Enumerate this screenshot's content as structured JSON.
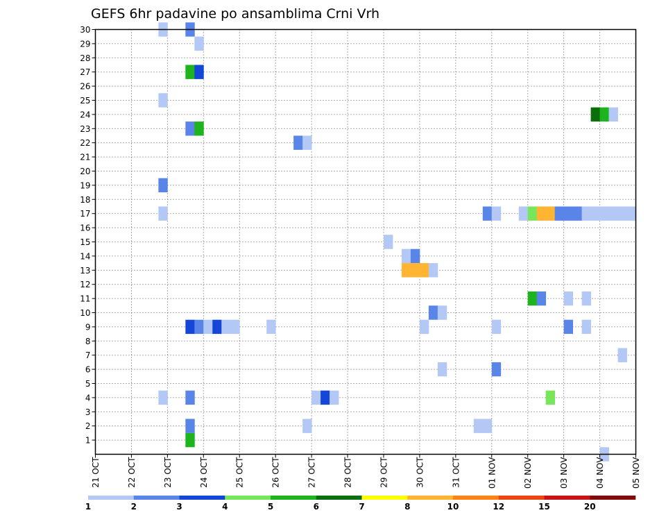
{
  "chart_data": {
    "type": "heatmap",
    "title": "GEFS 6hr padavine po ansamblima Crni Vrh",
    "xlabel": "",
    "ylabel": "",
    "x_ticks": [
      "21 OCT",
      "22 OCT",
      "23 OCT",
      "24 OCT",
      "25 OCT",
      "26 OCT",
      "27 OCT",
      "28 OCT",
      "29 OCT",
      "30 OCT",
      "31 OCT",
      "01 NOV",
      "02 NOV",
      "03 NOV",
      "04 NOV",
      "05 NOV"
    ],
    "y_ticks": [
      "1",
      "2",
      "3",
      "4",
      "5",
      "6",
      "7",
      "8",
      "9",
      "10",
      "11",
      "12",
      "13",
      "14",
      "15",
      "16",
      "17",
      "18",
      "19",
      "20",
      "21",
      "22",
      "23",
      "24",
      "25",
      "26",
      "27",
      "28",
      "29",
      "30"
    ],
    "ylim": [
      0,
      30
    ],
    "grid": true,
    "time_step_hours": 6,
    "legend": {
      "placement": "bottom",
      "labels": [
        "1",
        "2",
        "3",
        "4",
        "5",
        "6",
        "7",
        "8",
        "10",
        "12",
        "15",
        "20"
      ],
      "colors": [
        "#b4c8f6",
        "#5a85e8",
        "#1446d8",
        "#78e65a",
        "#1eb41e",
        "#0a6e0a",
        "#ffff00",
        "#ffb432",
        "#ff8214",
        "#ea4614",
        "#c81414",
        "#820a0a"
      ]
    },
    "cells": [
      {
        "member": 30,
        "day": "22 OCT",
        "slots": [
          [
            3,
            0
          ]
        ]
      },
      {
        "member": 30,
        "day": "23 OCT",
        "slots": [
          [
            2,
            1
          ]
        ]
      },
      {
        "member": 29,
        "day": "23 OCT",
        "slots": [
          [
            3,
            0
          ]
        ]
      },
      {
        "member": 27,
        "day": "23 OCT",
        "slots": [
          [
            2,
            4
          ],
          [
            3,
            2
          ]
        ]
      },
      {
        "member": 25,
        "day": "22 OCT",
        "slots": [
          [
            3,
            0
          ]
        ]
      },
      {
        "member": 24,
        "day": "03 NOV",
        "slots": [
          [
            3,
            5
          ]
        ]
      },
      {
        "member": 24,
        "day": "04 NOV",
        "slots": [
          [
            0,
            4
          ],
          [
            1,
            0
          ]
        ]
      },
      {
        "member": 23,
        "day": "23 OCT",
        "slots": [
          [
            2,
            1
          ],
          [
            3,
            4
          ]
        ]
      },
      {
        "member": 22,
        "day": "26 OCT",
        "slots": [
          [
            2,
            1
          ],
          [
            3,
            0
          ]
        ]
      },
      {
        "member": 19,
        "day": "22 OCT",
        "slots": [
          [
            3,
            1
          ]
        ]
      },
      {
        "member": 17,
        "day": "22 OCT",
        "slots": [
          [
            3,
            0
          ]
        ]
      },
      {
        "member": 17,
        "day": "31 OCT",
        "slots": [
          [
            3,
            1
          ]
        ]
      },
      {
        "member": 17,
        "day": "01 NOV",
        "slots": [
          [
            0,
            0
          ],
          [
            3,
            0
          ]
        ]
      },
      {
        "member": 17,
        "day": "02 NOV",
        "slots": [
          [
            0,
            3
          ],
          [
            1,
            7
          ],
          [
            2,
            7
          ],
          [
            3,
            1
          ]
        ]
      },
      {
        "member": 17,
        "day": "03 NOV",
        "slots": [
          [
            0,
            1
          ],
          [
            1,
            1
          ],
          [
            2,
            0
          ],
          [
            3,
            0
          ]
        ]
      },
      {
        "member": 17,
        "day": "04 NOV",
        "slots": [
          [
            0,
            0
          ],
          [
            1,
            0
          ],
          [
            2,
            0
          ],
          [
            3,
            0
          ]
        ]
      },
      {
        "member": 15,
        "day": "29 OCT",
        "slots": [
          [
            0,
            0
          ]
        ]
      },
      {
        "member": 14,
        "day": "29 OCT",
        "slots": [
          [
            2,
            0
          ],
          [
            3,
            1
          ]
        ]
      },
      {
        "member": 13,
        "day": "29 OCT",
        "slots": [
          [
            2,
            7
          ],
          [
            3,
            7
          ]
        ]
      },
      {
        "member": 13,
        "day": "30 OCT",
        "slots": [
          [
            0,
            7
          ],
          [
            1,
            0
          ]
        ]
      },
      {
        "member": 11,
        "day": "02 NOV",
        "slots": [
          [
            0,
            4
          ],
          [
            1,
            1
          ]
        ]
      },
      {
        "member": 11,
        "day": "03 NOV",
        "slots": [
          [
            0,
            0
          ],
          [
            2,
            0
          ]
        ]
      },
      {
        "member": 10,
        "day": "30 OCT",
        "slots": [
          [
            1,
            1
          ],
          [
            2,
            0
          ]
        ]
      },
      {
        "member": 9,
        "day": "23 OCT",
        "slots": [
          [
            2,
            2
          ],
          [
            3,
            1
          ]
        ]
      },
      {
        "member": 9,
        "day": "24 OCT",
        "slots": [
          [
            0,
            0
          ],
          [
            1,
            2
          ],
          [
            2,
            0
          ],
          [
            3,
            0
          ]
        ]
      },
      {
        "member": 9,
        "day": "25 OCT",
        "slots": [
          [
            3,
            0
          ]
        ]
      },
      {
        "member": 9,
        "day": "30 OCT",
        "slots": [
          [
            0,
            0
          ]
        ]
      },
      {
        "member": 9,
        "day": "01 NOV",
        "slots": [
          [
            0,
            0
          ]
        ]
      },
      {
        "member": 9,
        "day": "03 NOV",
        "slots": [
          [
            0,
            1
          ],
          [
            2,
            0
          ]
        ]
      },
      {
        "member": 7,
        "day": "04 NOV",
        "slots": [
          [
            2,
            0
          ]
        ]
      },
      {
        "member": 6,
        "day": "30 OCT",
        "slots": [
          [
            2,
            0
          ]
        ]
      },
      {
        "member": 6,
        "day": "01 NOV",
        "slots": [
          [
            0,
            1
          ]
        ]
      },
      {
        "member": 4,
        "day": "22 OCT",
        "slots": [
          [
            3,
            0
          ]
        ]
      },
      {
        "member": 4,
        "day": "23 OCT",
        "slots": [
          [
            2,
            1
          ]
        ]
      },
      {
        "member": 4,
        "day": "27 OCT",
        "slots": [
          [
            0,
            0
          ],
          [
            1,
            2
          ],
          [
            2,
            0
          ]
        ]
      },
      {
        "member": 4,
        "day": "02 NOV",
        "slots": [
          [
            2,
            3
          ]
        ]
      },
      {
        "member": 2,
        "day": "23 OCT",
        "slots": [
          [
            2,
            1
          ]
        ]
      },
      {
        "member": 2,
        "day": "26 OCT",
        "slots": [
          [
            3,
            0
          ]
        ]
      },
      {
        "member": 2,
        "day": "31 OCT",
        "slots": [
          [
            2,
            0
          ],
          [
            3,
            0
          ]
        ]
      },
      {
        "member": 1,
        "day": "23 OCT",
        "slots": [
          [
            2,
            4
          ]
        ]
      },
      {
        "member": 0,
        "day": "04 NOV",
        "slots": [
          [
            0,
            0
          ]
        ]
      }
    ]
  }
}
